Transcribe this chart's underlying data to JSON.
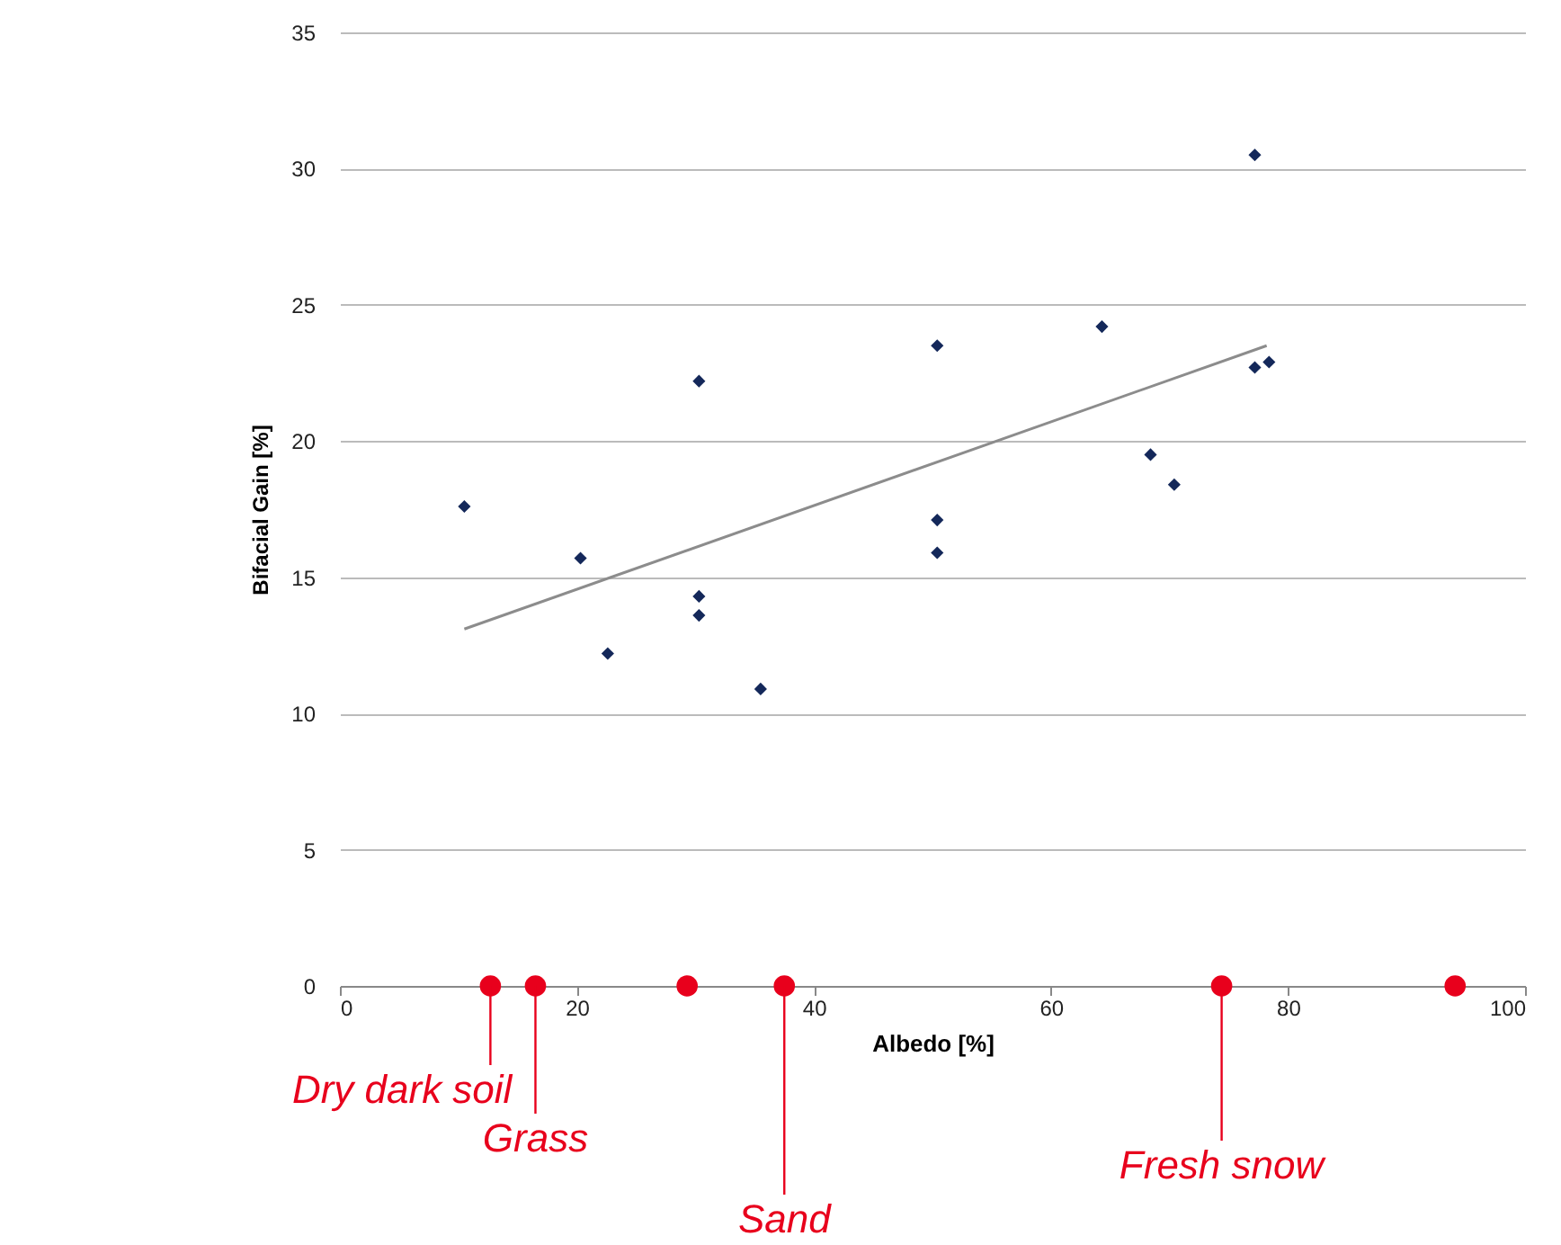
{
  "chart_data": {
    "type": "scatter",
    "xlabel": "Albedo [%]",
    "ylabel": "Bifacial Gain [%]",
    "xlim": [
      0,
      100
    ],
    "xticks": [
      0,
      20,
      40,
      60,
      80,
      100
    ],
    "ylim": [
      0,
      35
    ],
    "yticks": [
      0,
      5,
      10,
      15,
      20,
      25,
      30,
      35
    ],
    "grid": "y",
    "marker": "diamond",
    "series": [
      {
        "color": "#14285a",
        "x": [
          10.5,
          20.3,
          22.6,
          30.3,
          30.3,
          30.3,
          35.5,
          50.4,
          50.4,
          50.4,
          64.3,
          68.4,
          70.4,
          77.2,
          77.2,
          78.4
        ],
        "values": [
          17.6,
          15.7,
          12.2,
          22.2,
          14.3,
          13.6,
          10.9,
          23.5,
          17.1,
          15.9,
          24.2,
          19.5,
          18.4,
          30.5,
          22.7,
          22.9
        ]
      },
      {
        "type": "line",
        "color": "#8c8c8c",
        "marker": "none",
        "x": [
          10.5,
          78.2
        ],
        "values": [
          13.1,
          23.5
        ]
      },
      {
        "type": "scatter",
        "color": "#e8001c",
        "marker": "circle",
        "x": [
          12.7,
          16.5,
          29.3,
          37.5,
          74.4,
          94.1
        ],
        "values": [
          0,
          0,
          0,
          0,
          0,
          0
        ]
      }
    ],
    "annotations": [
      {
        "text": "Dry dark soil",
        "x": 12.7,
        "y": 0
      },
      {
        "text": "Grass",
        "x": 16.5,
        "y": 0
      },
      {
        "text": "Sand",
        "x": 37.5,
        "y": 0
      },
      {
        "text": "Fresh snow",
        "x": 74.4,
        "y": 0
      }
    ]
  }
}
